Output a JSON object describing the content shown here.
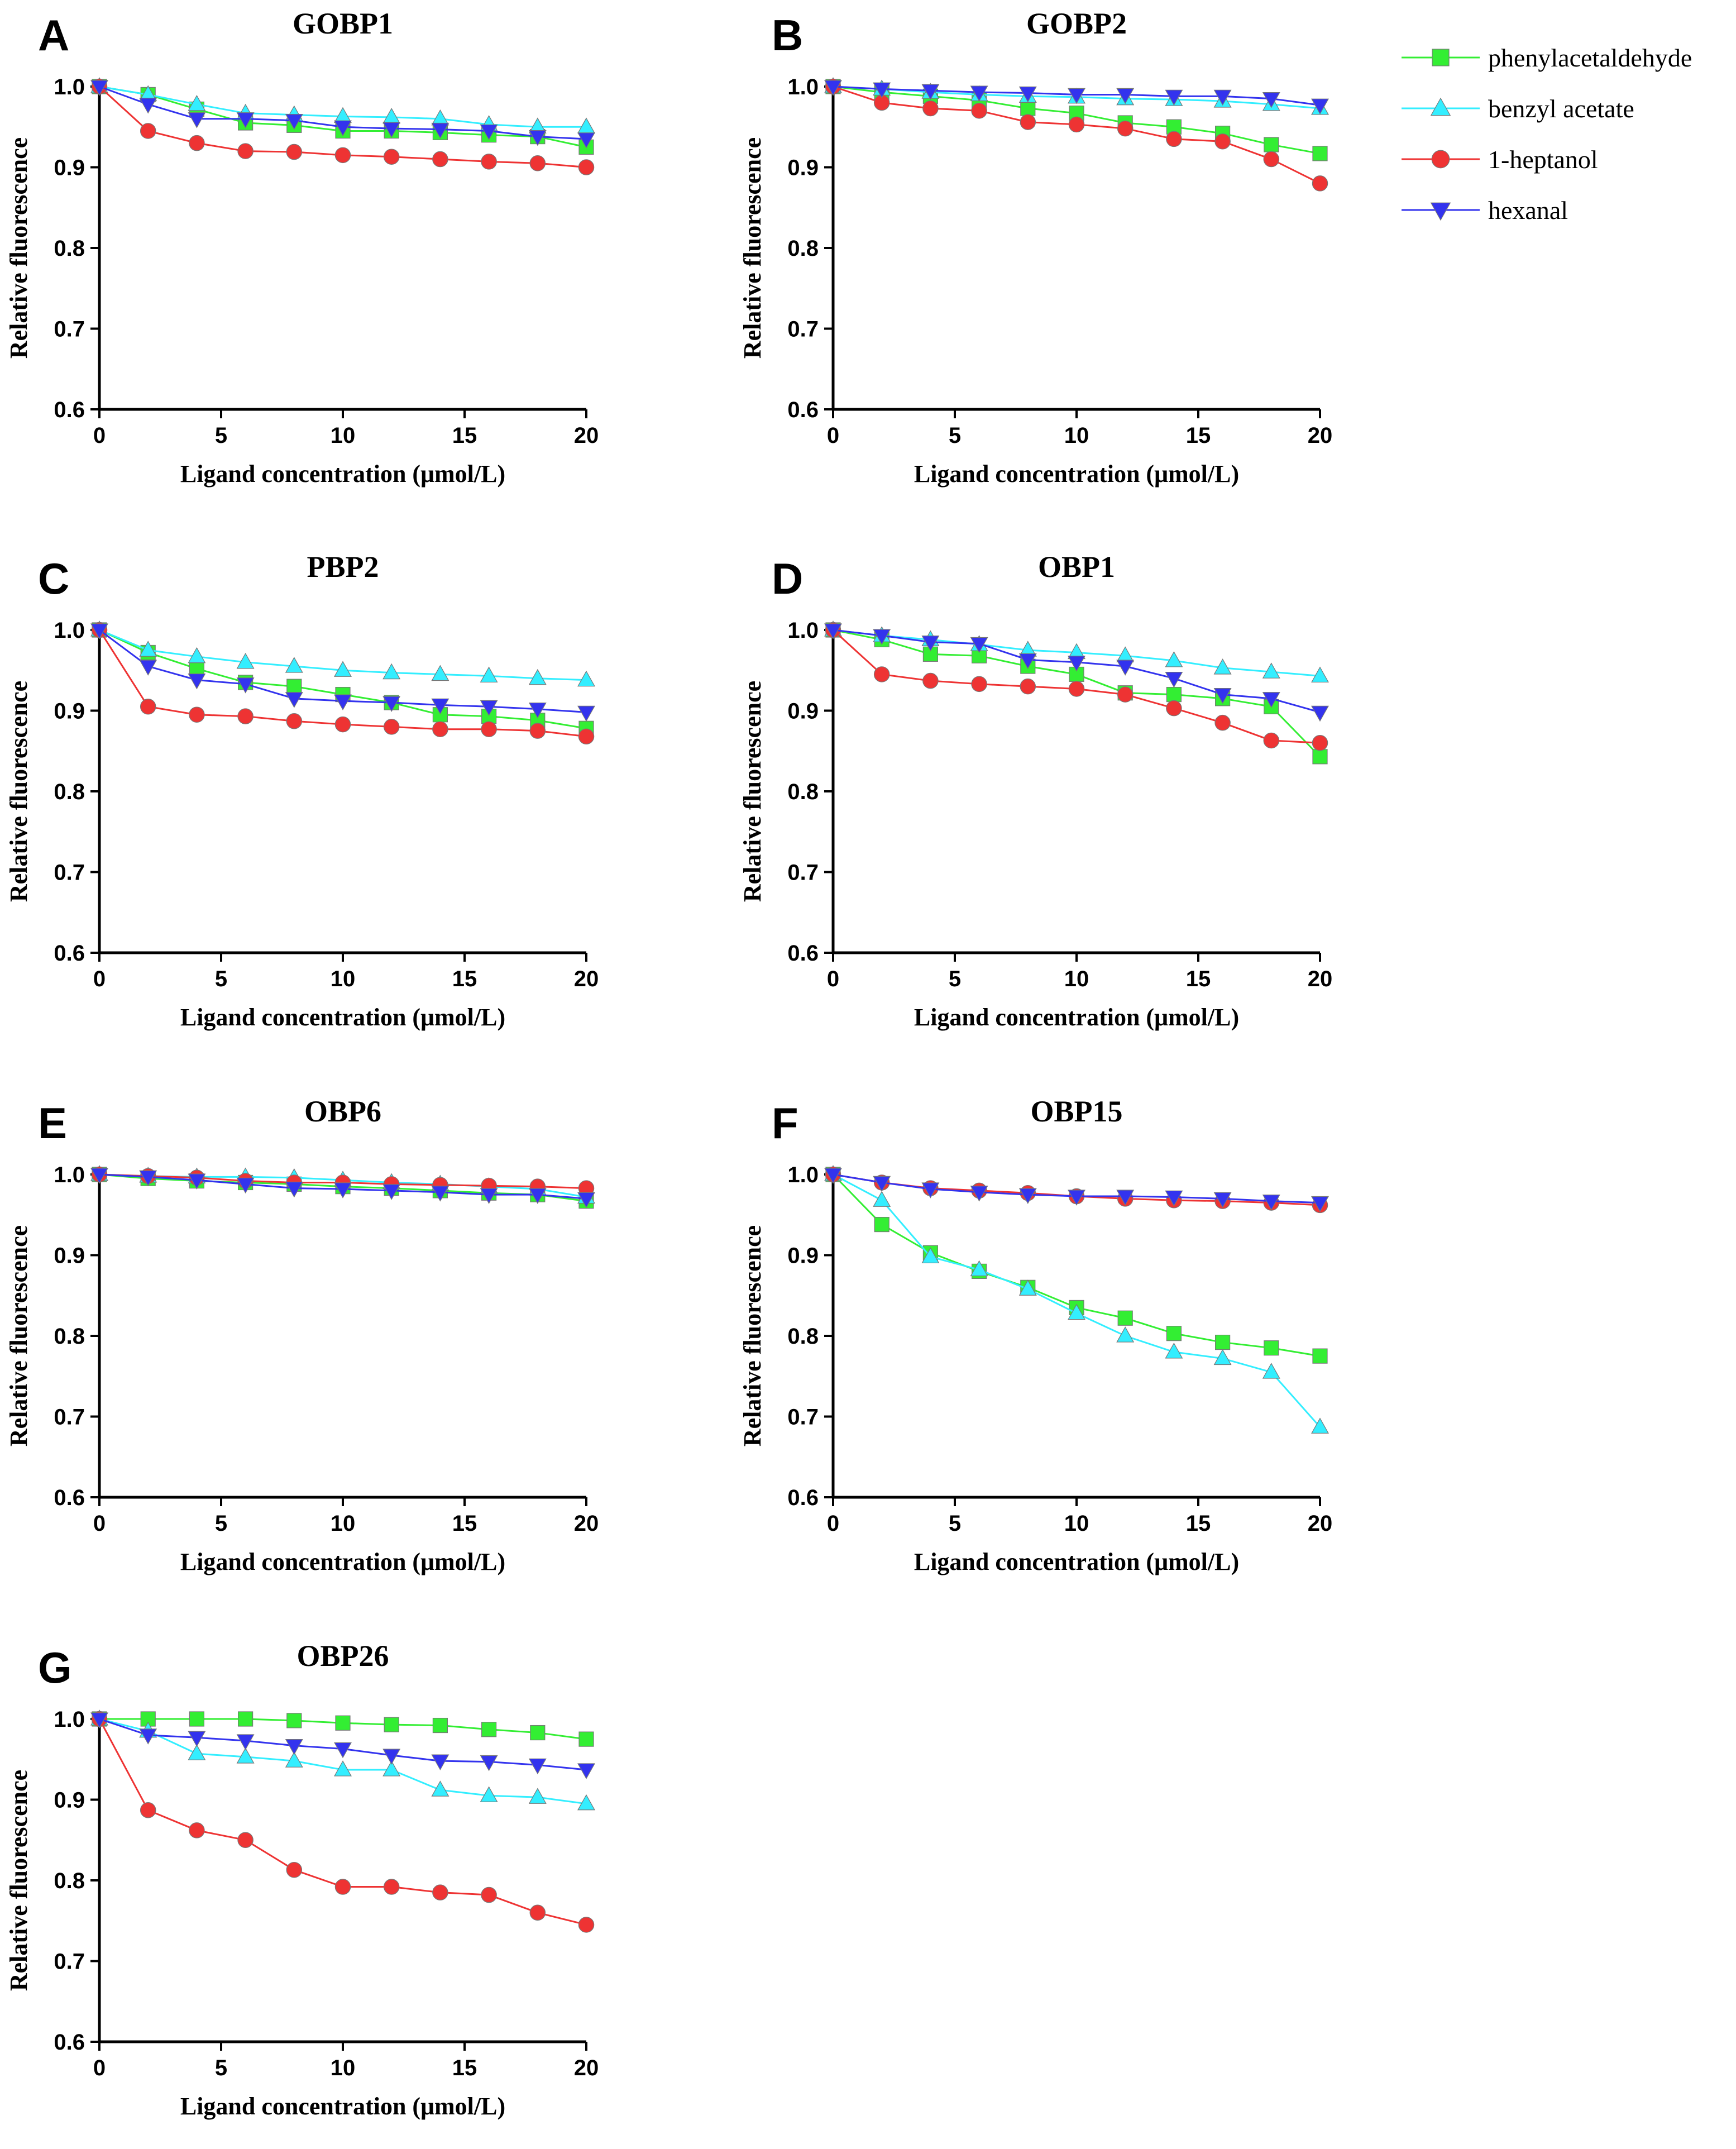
{
  "chart_data": {
    "type": "line",
    "x_common": [
      0,
      2,
      4,
      6,
      8,
      10,
      12,
      14,
      16,
      18,
      20
    ],
    "legend": {
      "placement": "top-right",
      "entries": [
        {
          "name": "phenylacetaldehyde",
          "color": "#33ee33",
          "marker": "square"
        },
        {
          "name": "benzyl acetate",
          "color": "#33eeff",
          "marker": "triangle-up"
        },
        {
          "name": "1-heptanol",
          "color": "#ee3333",
          "marker": "circle"
        },
        {
          "name": "hexanal",
          "color": "#3333ee",
          "marker": "triangle-down"
        }
      ]
    },
    "panels": [
      {
        "letter": "A",
        "title": "GOBP1",
        "xlabel": "Ligand concentration (μmol/L)",
        "ylabel": "Relative fluorescence",
        "xlim": [
          0,
          20
        ],
        "ylim": [
          0.6,
          1.0
        ],
        "xticks": [
          "0",
          "5",
          "10",
          "15",
          "20"
        ],
        "yticks": [
          "0.6",
          "0.7",
          "0.8",
          "0.9",
          "1.0"
        ],
        "series": [
          {
            "name": "phenylacetaldehyde",
            "values": [
              1.0,
              0.99,
              0.972,
              0.955,
              0.952,
              0.945,
              0.945,
              0.943,
              0.94,
              0.938,
              0.925
            ]
          },
          {
            "name": "benzyl acetate",
            "values": [
              1.0,
              0.99,
              0.978,
              0.967,
              0.965,
              0.963,
              0.962,
              0.96,
              0.953,
              0.95,
              0.95
            ]
          },
          {
            "name": "1-heptanol",
            "values": [
              1.0,
              0.945,
              0.93,
              0.92,
              0.919,
              0.915,
              0.913,
              0.91,
              0.907,
              0.905,
              0.9
            ]
          },
          {
            "name": "hexanal",
            "values": [
              1.0,
              0.978,
              0.96,
              0.96,
              0.958,
              0.95,
              0.948,
              0.947,
              0.945,
              0.938,
              0.935
            ]
          }
        ]
      },
      {
        "letter": "B",
        "title": "GOBP2",
        "xlabel": "Ligand concentration (μmol/L)",
        "ylabel": "Relative fluorescence",
        "xlim": [
          0,
          20
        ],
        "ylim": [
          0.6,
          1.0
        ],
        "xticks": [
          "0",
          "5",
          "10",
          "15",
          "20"
        ],
        "yticks": [
          "0.6",
          "0.7",
          "0.8",
          "0.9",
          "1.0"
        ],
        "series": [
          {
            "name": "phenylacetaldehyde",
            "values": [
              1.0,
              0.993,
              0.988,
              0.983,
              0.973,
              0.967,
              0.955,
              0.95,
              0.942,
              0.928,
              0.917
            ]
          },
          {
            "name": "benzyl acetate",
            "values": [
              1.0,
              0.997,
              0.993,
              0.99,
              0.988,
              0.987,
              0.985,
              0.984,
              0.982,
              0.978,
              0.973
            ]
          },
          {
            "name": "1-heptanol",
            "values": [
              1.0,
              0.98,
              0.973,
              0.97,
              0.956,
              0.953,
              0.948,
              0.935,
              0.932,
              0.91,
              0.88
            ]
          },
          {
            "name": "hexanal",
            "values": [
              1.0,
              0.997,
              0.995,
              0.993,
              0.992,
              0.99,
              0.99,
              0.988,
              0.988,
              0.985,
              0.977
            ]
          }
        ]
      },
      {
        "letter": "C",
        "title": "PBP2",
        "xlabel": "Ligand concentration (μmol/L)",
        "ylabel": "Relative fluorescence",
        "xlim": [
          0,
          20
        ],
        "ylim": [
          0.6,
          1.0
        ],
        "xticks": [
          "0",
          "5",
          "10",
          "15",
          "20"
        ],
        "yticks": [
          "0.6",
          "0.7",
          "0.8",
          "0.9",
          "1.0"
        ],
        "series": [
          {
            "name": "phenylacetaldehyde",
            "values": [
              1.0,
              0.972,
              0.952,
              0.935,
              0.93,
              0.92,
              0.91,
              0.895,
              0.893,
              0.888,
              0.878
            ]
          },
          {
            "name": "benzyl acetate",
            "values": [
              1.0,
              0.975,
              0.967,
              0.96,
              0.955,
              0.95,
              0.947,
              0.945,
              0.943,
              0.94,
              0.938
            ]
          },
          {
            "name": "1-heptanol",
            "values": [
              1.0,
              0.905,
              0.895,
              0.893,
              0.887,
              0.883,
              0.88,
              0.877,
              0.877,
              0.875,
              0.868
            ]
          },
          {
            "name": "hexanal",
            "values": [
              1.0,
              0.955,
              0.938,
              0.933,
              0.915,
              0.912,
              0.91,
              0.907,
              0.905,
              0.902,
              0.898
            ]
          }
        ]
      },
      {
        "letter": "D",
        "title": "OBP1",
        "xlabel": "Ligand concentration (μmol/L)",
        "ylabel": "Relative fluorescence",
        "xlim": [
          0,
          20
        ],
        "ylim": [
          0.6,
          1.0
        ],
        "xticks": [
          "0",
          "5",
          "10",
          "15",
          "20"
        ],
        "yticks": [
          "0.6",
          "0.7",
          "0.8",
          "0.9",
          "1.0"
        ],
        "series": [
          {
            "name": "phenylacetaldehyde",
            "values": [
              1.0,
              0.988,
              0.97,
              0.968,
              0.955,
              0.945,
              0.922,
              0.92,
              0.915,
              0.905,
              0.843
            ]
          },
          {
            "name": "benzyl acetate",
            "values": [
              1.0,
              0.993,
              0.988,
              0.982,
              0.975,
              0.972,
              0.968,
              0.962,
              0.953,
              0.948,
              0.943
            ]
          },
          {
            "name": "1-heptanol",
            "values": [
              1.0,
              0.945,
              0.937,
              0.933,
              0.93,
              0.927,
              0.92,
              0.903,
              0.885,
              0.863,
              0.86
            ]
          },
          {
            "name": "hexanal",
            "values": [
              1.0,
              0.993,
              0.985,
              0.983,
              0.963,
              0.96,
              0.955,
              0.94,
              0.92,
              0.915,
              0.898
            ]
          }
        ]
      },
      {
        "letter": "E",
        "title": "OBP6",
        "xlabel": "Ligand concentration (μmol/L)",
        "ylabel": "Relative fluorescence",
        "xlim": [
          0,
          20
        ],
        "ylim": [
          0.6,
          1.0
        ],
        "xticks": [
          "0",
          "5",
          "10",
          "15",
          "20"
        ],
        "yticks": [
          "0.6",
          "0.7",
          "0.8",
          "0.9",
          "1.0"
        ],
        "series": [
          {
            "name": "phenylacetaldehyde",
            "values": [
              1.0,
              0.995,
              0.992,
              0.99,
              0.988,
              0.985,
              0.983,
              0.98,
              0.977,
              0.975,
              0.967
            ]
          },
          {
            "name": "benzyl acetate",
            "values": [
              1.0,
              0.998,
              0.997,
              0.997,
              0.996,
              0.993,
              0.99,
              0.988,
              0.985,
              0.982,
              0.972
            ]
          },
          {
            "name": "1-heptanol",
            "values": [
              1.0,
              0.998,
              0.996,
              0.992,
              0.99,
              0.99,
              0.988,
              0.987,
              0.986,
              0.985,
              0.983
            ]
          },
          {
            "name": "hexanal",
            "values": [
              1.0,
              0.997,
              0.993,
              0.988,
              0.983,
              0.982,
              0.98,
              0.978,
              0.975,
              0.975,
              0.97
            ]
          }
        ]
      },
      {
        "letter": "F",
        "title": "OBP15",
        "xlabel": "Ligand concentration (μmol/L)",
        "ylabel": "Relative fluorescence",
        "xlim": [
          0,
          20
        ],
        "ylim": [
          0.6,
          1.0
        ],
        "xticks": [
          "0",
          "5",
          "10",
          "15",
          "20"
        ],
        "yticks": [
          "0.6",
          "0.7",
          "0.8",
          "0.9",
          "1.0"
        ],
        "series": [
          {
            "name": "phenylacetaldehyde",
            "values": [
              1.0,
              0.938,
              0.903,
              0.88,
              0.86,
              0.835,
              0.822,
              0.803,
              0.792,
              0.785,
              0.775
            ]
          },
          {
            "name": "benzyl acetate",
            "values": [
              1.0,
              0.968,
              0.898,
              0.882,
              0.858,
              0.828,
              0.8,
              0.78,
              0.772,
              0.755,
              0.687
            ]
          },
          {
            "name": "1-heptanol",
            "values": [
              1.0,
              0.99,
              0.983,
              0.98,
              0.977,
              0.973,
              0.97,
              0.968,
              0.967,
              0.965,
              0.962
            ]
          },
          {
            "name": "hexanal",
            "values": [
              1.0,
              0.99,
              0.982,
              0.978,
              0.975,
              0.973,
              0.973,
              0.972,
              0.97,
              0.967,
              0.965
            ]
          }
        ]
      },
      {
        "letter": "G",
        "title": "OBP26",
        "xlabel": "Ligand concentration (μmol/L)",
        "ylabel": "Relative fluorescence",
        "xlim": [
          0,
          20
        ],
        "ylim": [
          0.6,
          1.0
        ],
        "xticks": [
          "0",
          "5",
          "10",
          "15",
          "20"
        ],
        "yticks": [
          "0.6",
          "0.7",
          "0.8",
          "0.9",
          "1.0"
        ],
        "series": [
          {
            "name": "phenylacetaldehyde",
            "values": [
              1.0,
              1.0,
              1.0,
              1.0,
              0.998,
              0.995,
              0.993,
              0.992,
              0.987,
              0.983,
              0.975
            ]
          },
          {
            "name": "benzyl acetate",
            "values": [
              1.0,
              0.985,
              0.957,
              0.953,
              0.948,
              0.937,
              0.937,
              0.912,
              0.905,
              0.903,
              0.895
            ]
          },
          {
            "name": "1-heptanol",
            "values": [
              1.0,
              0.887,
              0.862,
              0.85,
              0.813,
              0.792,
              0.792,
              0.785,
              0.782,
              0.76,
              0.745
            ]
          },
          {
            "name": "hexanal",
            "values": [
              1.0,
              0.98,
              0.977,
              0.973,
              0.967,
              0.963,
              0.955,
              0.948,
              0.947,
              0.943,
              0.937
            ]
          }
        ]
      }
    ]
  }
}
